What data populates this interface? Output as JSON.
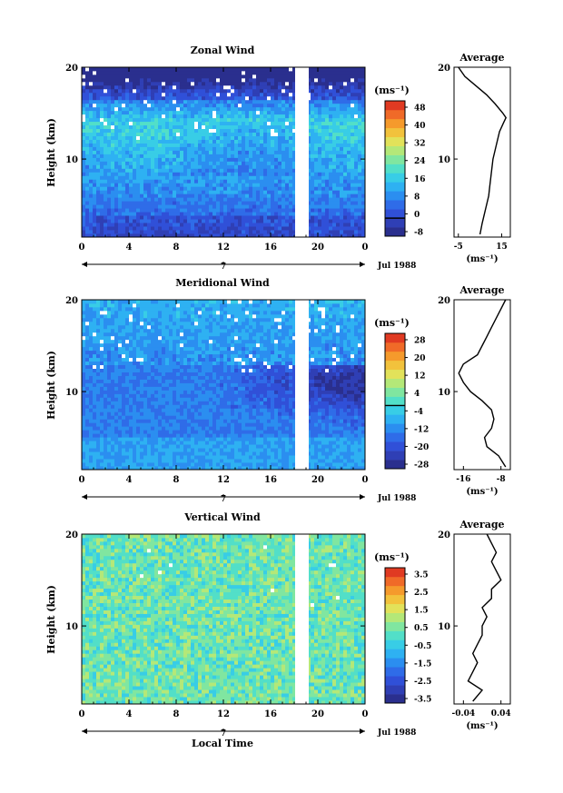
{
  "figure": {
    "xlabel": "Local Time",
    "date_label": "Jul 1988",
    "day_label": "7",
    "colorbar_unit": "(ms⁻¹)"
  },
  "chart_data": [
    {
      "type": "heatmap",
      "title": "Zonal Wind",
      "ylabel": "Height (km)",
      "xlabel": "",
      "x_ticks": [
        "0",
        "4",
        "8",
        "12",
        "16",
        "20",
        "0"
      ],
      "y_ticks": [
        "10",
        "20"
      ],
      "xlim": [
        0,
        24
      ],
      "ylim": [
        1.5,
        20
      ],
      "data_gap_hours": [
        18.0,
        19.2
      ],
      "description_values": {
        "low_levels_ms": -4,
        "mid_levels_ms": 12,
        "upper_jet_ms": 20,
        "top_levels_ms": -6
      },
      "colorbar": {
        "ticks": [
          "48",
          "40",
          "32",
          "24",
          "16",
          "8",
          "0",
          "-8"
        ],
        "min": -8,
        "max": 52,
        "zero_line": 0
      },
      "profile": {
        "title": "Average",
        "x_ticks": [
          "-5",
          "15"
        ],
        "xlim": [
          -7,
          19
        ],
        "x_unit": "(ms⁻¹)",
        "y_ticks": [
          "10",
          "20"
        ],
        "heights_km": [
          1.8,
          3,
          4,
          5,
          6,
          7,
          8,
          9,
          10,
          11,
          12,
          13,
          14,
          14.5,
          15,
          16,
          17,
          18,
          19,
          20
        ],
        "values": [
          5,
          6,
          7,
          8,
          9,
          9.5,
          10,
          10.5,
          11,
          12,
          13,
          14,
          16,
          17,
          15.5,
          12,
          8,
          3,
          -2,
          -5
        ]
      }
    },
    {
      "type": "heatmap",
      "title": "Meridional Wind",
      "ylabel": "Height (km)",
      "xlabel": "",
      "x_ticks": [
        "0",
        "4",
        "8",
        "12",
        "16",
        "20",
        "0"
      ],
      "y_ticks": [
        "10",
        "20"
      ],
      "xlim": [
        0,
        24
      ],
      "ylim": [
        1.5,
        20
      ],
      "data_gap_hours": [
        18.0,
        19.2
      ],
      "description_values": {
        "low_levels_ms": -8,
        "mid_levels_ms": -16,
        "afternoon_minimum_ms": -24,
        "upper_levels_ms": -10
      },
      "colorbar": {
        "ticks": [
          "28",
          "20",
          "12",
          "4",
          "-4",
          "-12",
          "-20",
          "-28"
        ],
        "min": -28,
        "max": 32,
        "zero_line": 0
      },
      "profile": {
        "title": "Average",
        "x_ticks": [
          "-16",
          "-8"
        ],
        "xlim": [
          -18,
          -6
        ],
        "x_unit": "(ms⁻¹)",
        "y_ticks": [
          "10",
          "20"
        ],
        "heights_km": [
          1.8,
          3,
          4,
          5,
          6,
          7,
          8,
          9,
          10,
          11,
          12,
          13,
          14,
          15,
          16,
          17,
          18,
          19,
          20
        ],
        "values": [
          -7,
          -8.5,
          -11,
          -11.5,
          -10,
          -9.5,
          -10,
          -12,
          -14.5,
          -16,
          -17,
          -16,
          -13,
          -12,
          -11,
          -10,
          -9,
          -8,
          -7
        ]
      }
    },
    {
      "type": "heatmap",
      "title": "Vertical Wind",
      "ylabel": "Height (km)",
      "xlabel": "Local Time",
      "x_ticks": [
        "0",
        "4",
        "8",
        "12",
        "16",
        "20",
        "0"
      ],
      "y_ticks": [
        "10",
        "20"
      ],
      "xlim": [
        0,
        24
      ],
      "ylim": [
        1.5,
        20
      ],
      "data_gap_hours": [
        18.0,
        19.2
      ],
      "description_values": {
        "typical_ms": 0.3
      },
      "colorbar": {
        "ticks": [
          "3.5",
          "2.5",
          "1.5",
          "0.5",
          "-0.5",
          "-1.5",
          "-2.5",
          "-3.5"
        ],
        "min": -4,
        "max": 4
      },
      "profile": {
        "title": "Average",
        "x_ticks": [
          "-0.04",
          "0.04"
        ],
        "xlim": [
          -0.06,
          0.06
        ],
        "x_unit": "(ms⁻¹)",
        "y_ticks": [
          "10",
          "20"
        ],
        "heights_km": [
          1.8,
          3,
          4,
          5,
          6,
          7,
          8,
          9,
          10,
          11,
          12,
          13,
          14,
          15,
          16,
          17,
          18,
          19,
          20
        ],
        "values": [
          -0.02,
          0.0,
          -0.03,
          -0.02,
          -0.01,
          -0.02,
          -0.01,
          0.0,
          0.0,
          0.01,
          0.0,
          0.02,
          0.02,
          0.04,
          0.03,
          0.02,
          0.03,
          0.02,
          0.01
        ]
      }
    }
  ]
}
